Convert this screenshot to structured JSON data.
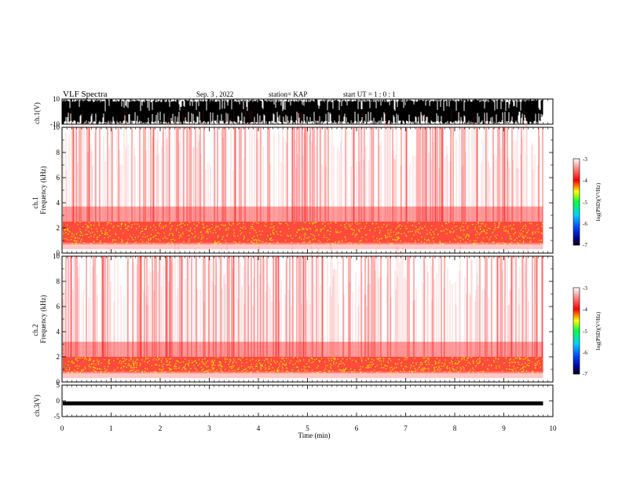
{
  "header": {
    "title": "VLF Spectra",
    "date": "Sep. 3  , 2022",
    "station": "station= KAP",
    "start": "start  UT =   1 : 0  : 1"
  },
  "chart_data": [
    {
      "type": "line",
      "name": "ch1-waveform",
      "ylabel": "ch.1(V)",
      "ylim": [
        -10,
        10
      ],
      "yticks": [
        "10",
        "-10"
      ],
      "xlim": [
        0,
        10
      ],
      "data_end_min": 9.8,
      "description_series": [
        {
          "name": "ch.1",
          "x_range": [
            0,
            9.8
          ],
          "y_range": [
            -10,
            10
          ]
        }
      ]
    },
    {
      "type": "heatmap",
      "name": "ch1-spectrogram",
      "ylabel": "ch.1\nFrequency  (kHz)",
      "ylabel_lines": [
        "ch.1",
        "Frequency  (kHz)"
      ],
      "ylim": [
        0,
        10
      ],
      "yticks": [
        "0",
        "2",
        "4",
        "6",
        "8",
        "10"
      ],
      "xlim": [
        0,
        10
      ],
      "data_end_min": 9.8,
      "colorbar": {
        "label": "log(PSD)(V²/Hz)",
        "range": [
          -7,
          -3
        ],
        "ticks": [
          "-3",
          "-4",
          "-5",
          "-6",
          "-7"
        ]
      },
      "strong_band_khz": [
        0.7,
        2.5
      ]
    },
    {
      "type": "heatmap",
      "name": "ch2-spectrogram",
      "ylabel_lines": [
        "ch.2",
        "Frequency  (kHz)"
      ],
      "ylim": [
        0,
        10
      ],
      "yticks": [
        "0",
        "2",
        "4",
        "6",
        "8",
        "10"
      ],
      "xlim": [
        0,
        10
      ],
      "data_end_min": 9.8,
      "colorbar": {
        "label": "log(PSD)(V²/Hz)",
        "range": [
          -7,
          -3
        ],
        "ticks": [
          "-3",
          "-4",
          "-5",
          "-6",
          "-7"
        ]
      },
      "strong_band_khz": [
        0.7,
        2.0
      ]
    },
    {
      "type": "line",
      "name": "ch3-waveform",
      "ylabel": "ch.3(V)",
      "ylim": [
        -5,
        5
      ],
      "yticks": [
        "5",
        "0",
        "-5"
      ],
      "xlim": [
        0,
        10
      ],
      "data_end_min": 9.8,
      "level_v": -0.8,
      "xlabel": "Time  (min)",
      "xticks": [
        "0",
        "1",
        "2",
        "3",
        "4",
        "5",
        "6",
        "7",
        "8",
        "9",
        "10"
      ]
    }
  ],
  "colors": {
    "waveform": "#000000",
    "spectrogram_low": "#ffffff",
    "spectrogram_mid": "#ff0000",
    "spectrogram_high": "#ffff00"
  }
}
